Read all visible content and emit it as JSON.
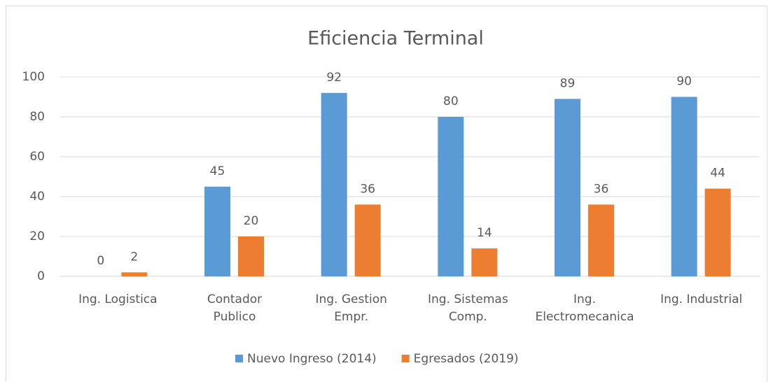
{
  "chart_data": {
    "type": "bar",
    "title": "Eficiencia Terminal",
    "categories": [
      [
        "Ing. Logistica"
      ],
      [
        "Contador",
        "Publico"
      ],
      [
        "Ing. Gestion",
        "Empr."
      ],
      [
        "Ing. Sistemas",
        "Comp."
      ],
      [
        "Ing.",
        "Electromecanica"
      ],
      [
        "Ing. Industrial"
      ]
    ],
    "series": [
      {
        "name": "Nuevo Ingreso (2014)",
        "color": "#5b9bd5",
        "values": [
          0,
          45,
          92,
          80,
          89,
          90
        ]
      },
      {
        "name": "Egresados (2019)",
        "color": "#ed7d31",
        "values": [
          2,
          20,
          36,
          14,
          36,
          44
        ]
      }
    ],
    "ylim": [
      0,
      100
    ],
    "yticks": [
      0,
      20,
      40,
      60,
      80,
      100
    ],
    "grid": true,
    "legend": "bottom"
  }
}
